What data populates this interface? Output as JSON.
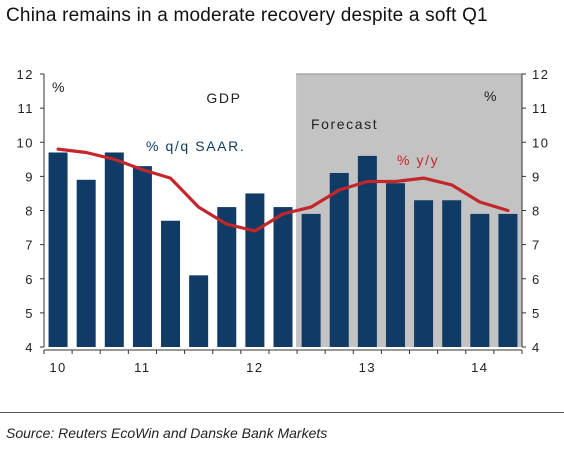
{
  "header": {
    "title": "China remains in a moderate recovery despite  a soft Q1"
  },
  "footer": {
    "source": "Source:  Reuters EcoWin and  Danske Bank Markets"
  },
  "colors": {
    "bar": "#0f3b66",
    "line": "#c3262b",
    "forecast_bg": "#c3c3c3",
    "forecast_border": "#8a8a8a",
    "line_label": "#c3262b",
    "bar_label": "#0f3b66"
  },
  "chart_data": {
    "type": "bar",
    "title": "GDP",
    "unit_left": "%",
    "unit_right": "%",
    "ylim": [
      4,
      12
    ],
    "yticks": [
      4,
      5,
      6,
      7,
      8,
      9,
      10,
      11,
      12
    ],
    "x_ticks": [
      {
        "label": "10",
        "index": 0
      },
      {
        "label": "11",
        "index": 3
      },
      {
        "label": "12",
        "index": 7
      },
      {
        "label": "13",
        "index": 11
      },
      {
        "label": "14",
        "index": 15
      }
    ],
    "forecast": {
      "label": "Forecast",
      "start_index": 9
    },
    "series": [
      {
        "name": "% q/q SAAR.",
        "type": "bar",
        "values": [
          9.7,
          8.9,
          9.7,
          9.3,
          7.7,
          6.1,
          8.1,
          8.5,
          8.1,
          7.9,
          9.1,
          9.6,
          8.8,
          8.3,
          8.3,
          7.9,
          7.9
        ]
      },
      {
        "name": "% y/y",
        "type": "line",
        "values": [
          9.8,
          9.7,
          9.5,
          9.2,
          8.95,
          8.1,
          7.6,
          7.4,
          7.9,
          8.1,
          8.6,
          8.85,
          8.85,
          8.95,
          8.75,
          8.25,
          8.0
        ]
      }
    ],
    "grid": false,
    "legend": "annotations"
  }
}
